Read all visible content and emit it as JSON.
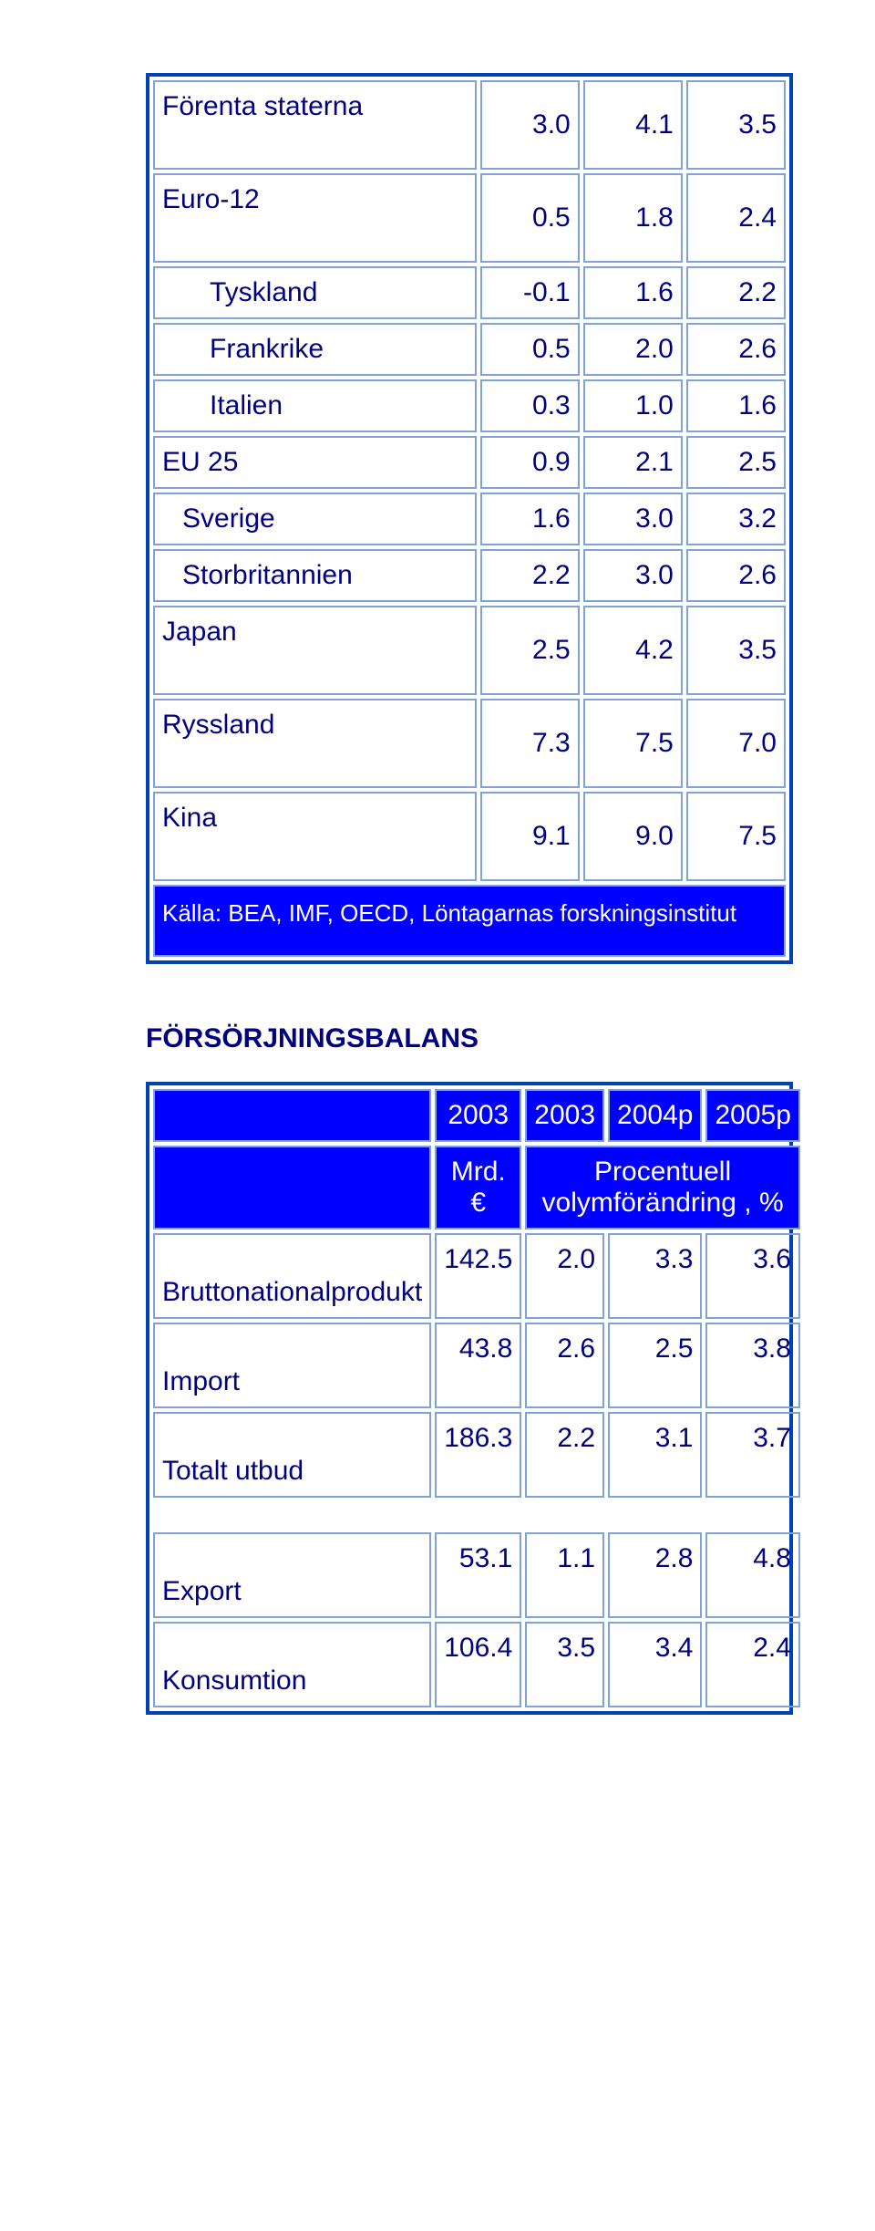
{
  "table1": {
    "rows": [
      {
        "label": "Förenta staterna",
        "indent": 0,
        "c1": "3.0",
        "c2": "4.1",
        "c3": "3.5",
        "tall": true
      },
      {
        "label": "Euro-12",
        "indent": 0,
        "c1": "0.5",
        "c2": "1.8",
        "c3": "2.4",
        "tall": true
      },
      {
        "label": "Tyskland",
        "indent": 2,
        "c1": "-0.1",
        "c2": "1.6",
        "c3": "2.2",
        "tall": false
      },
      {
        "label": "Frankrike",
        "indent": 2,
        "c1": "0.5",
        "c2": "2.0",
        "c3": "2.6",
        "tall": false
      },
      {
        "label": "Italien",
        "indent": 2,
        "c1": "0.3",
        "c2": "1.0",
        "c3": "1.6",
        "tall": false
      },
      {
        "label": "EU 25",
        "indent": 0,
        "c1": "0.9",
        "c2": "2.1",
        "c3": "2.5",
        "tall": false
      },
      {
        "label": "Sverige",
        "indent": 1,
        "c1": "1.6",
        "c2": "3.0",
        "c3": "3.2",
        "tall": false
      },
      {
        "label": "Storbritannien",
        "indent": 1,
        "c1": "2.2",
        "c2": "3.0",
        "c3": "2.6",
        "tall": false
      },
      {
        "label": "Japan",
        "indent": 0,
        "c1": "2.5",
        "c2": "4.2",
        "c3": "3.5",
        "tall": true
      },
      {
        "label": "Ryssland",
        "indent": 0,
        "c1": "7.3",
        "c2": "7.5",
        "c3": "7.0",
        "tall": true
      },
      {
        "label": "Kina",
        "indent": 0,
        "c1": "9.1",
        "c2": "9.0",
        "c3": "7.5",
        "tall": true
      }
    ],
    "source": "Källa: BEA, IMF, OECD, Löntagarnas forskningsinstitut"
  },
  "section2": {
    "heading": "FÖRSÖRJNINGSBALANS",
    "years": [
      "2003",
      "2003",
      "2004p",
      "2005p"
    ],
    "unit_col": "Mrd.\n€",
    "unit_span": "Procentuell\nvolymförändring , %",
    "rows1": [
      {
        "label": "Bruttonationalprodukt",
        "c1": "142.5",
        "c2": "2.0",
        "c3": "3.3",
        "c4": "3.6"
      },
      {
        "label": "Import",
        "c1": "43.8",
        "c2": "2.6",
        "c3": "2.5",
        "c4": "3.8"
      },
      {
        "label": "Totalt utbud",
        "c1": "186.3",
        "c2": "2.2",
        "c3": "3.1",
        "c4": "3.7"
      }
    ],
    "rows2": [
      {
        "label": "Export",
        "c1": "53.1",
        "c2": "1.1",
        "c3": "2.8",
        "c4": "4.8"
      },
      {
        "label": "Konsumtion",
        "c1": "106.4",
        "c2": "3.5",
        "c3": "3.4",
        "c4": "2.4"
      }
    ]
  },
  "colors": {
    "text": "#000080",
    "header_bg": "#0000ff",
    "header_text": "#ffffff",
    "border_outer": "#0043b0",
    "border_inner": "#81a2d5",
    "background": "#ffffff"
  }
}
